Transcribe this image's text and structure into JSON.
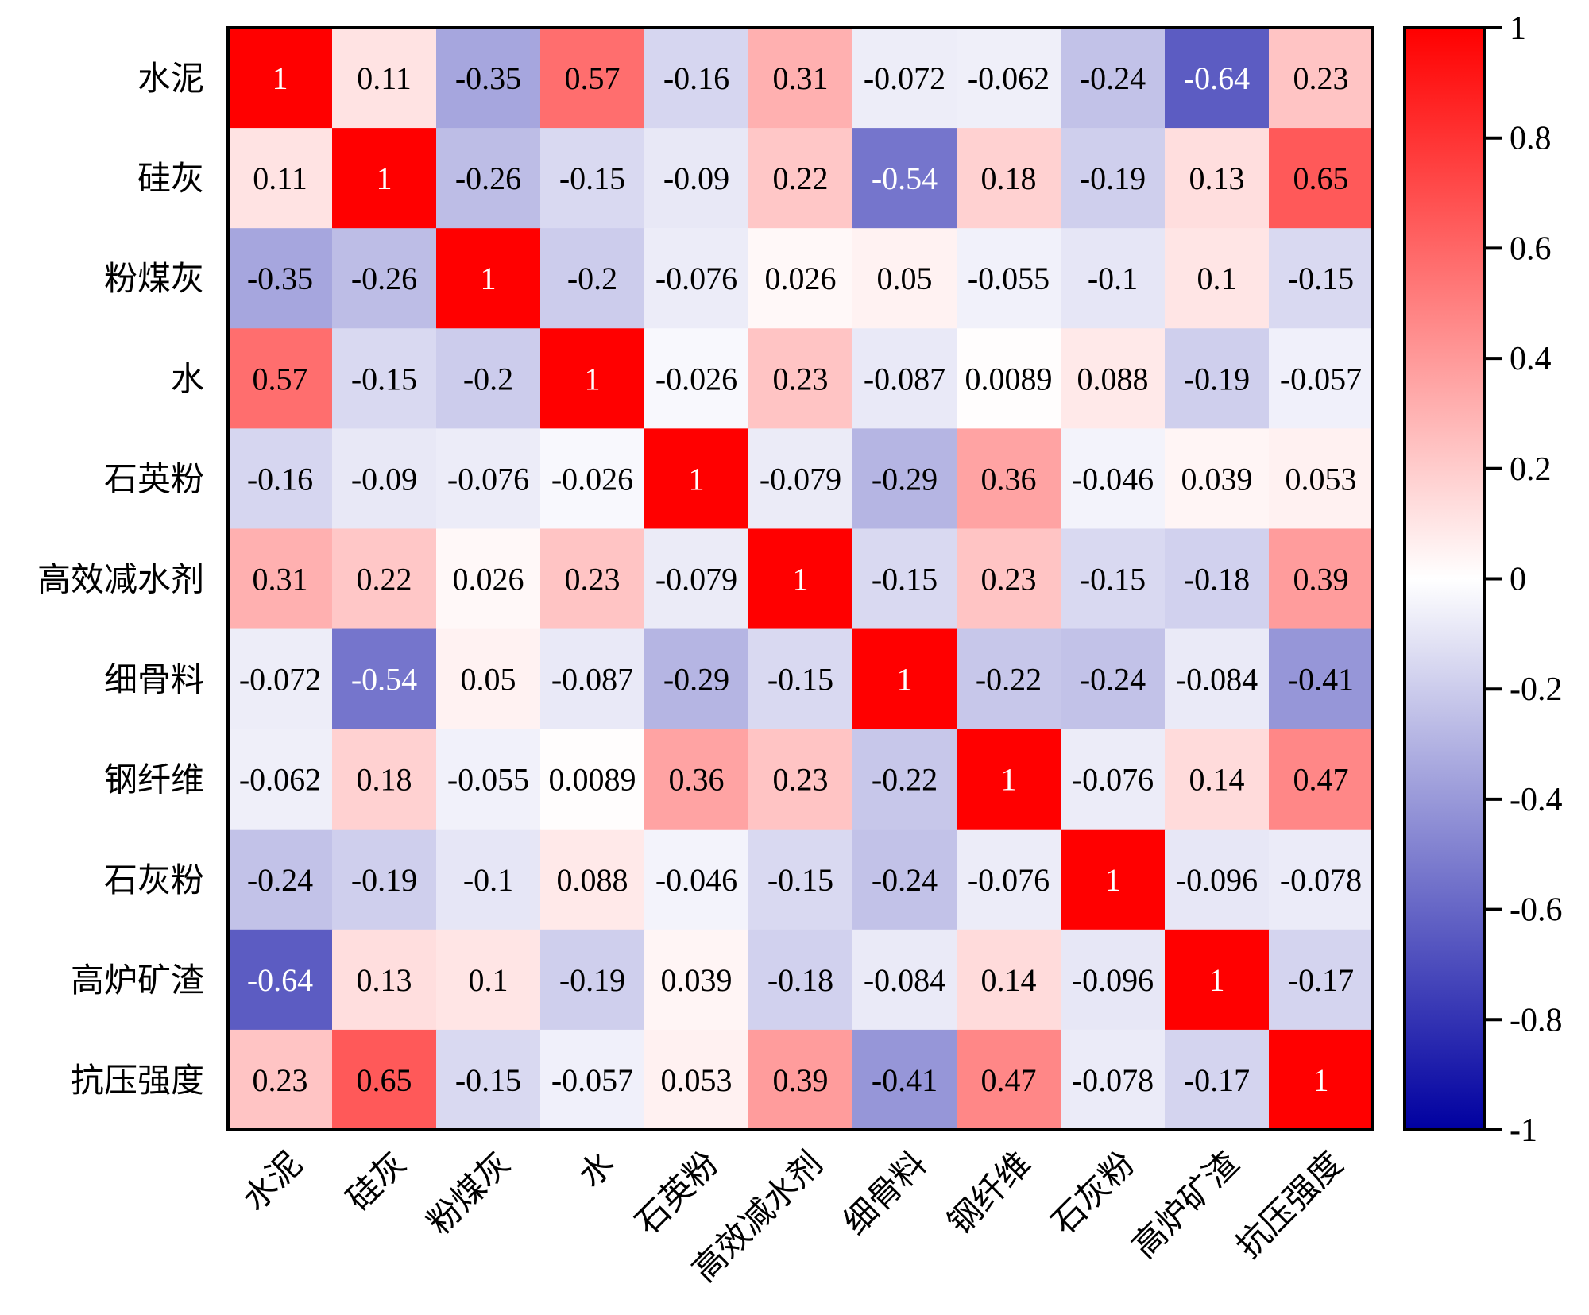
{
  "chart_data": {
    "type": "heatmap",
    "title": "",
    "xlabel": "",
    "ylabel": "",
    "categories": [
      "水泥",
      "硅灰",
      "粉煤灰",
      "水",
      "石英粉",
      "高效减水剂",
      "细骨料",
      "钢纤维",
      "石灰粉",
      "高炉矿渣",
      "抗压强度"
    ],
    "values": [
      [
        1,
        0.11,
        -0.35,
        0.57,
        -0.16,
        0.31,
        -0.072,
        -0.062,
        -0.24,
        -0.64,
        0.23
      ],
      [
        0.11,
        1,
        -0.26,
        -0.15,
        -0.09,
        0.22,
        -0.54,
        0.18,
        -0.19,
        0.13,
        0.65
      ],
      [
        -0.35,
        -0.26,
        1,
        -0.2,
        -0.076,
        0.026,
        0.05,
        -0.055,
        -0.1,
        0.1,
        -0.15
      ],
      [
        0.57,
        -0.15,
        -0.2,
        1,
        -0.026,
        0.23,
        -0.087,
        0.0089,
        0.088,
        -0.19,
        -0.057
      ],
      [
        -0.16,
        -0.09,
        -0.076,
        -0.026,
        1,
        -0.079,
        -0.29,
        0.36,
        -0.046,
        0.039,
        0.053
      ],
      [
        0.31,
        0.22,
        0.026,
        0.23,
        -0.079,
        1,
        -0.15,
        0.23,
        -0.15,
        -0.18,
        0.39
      ],
      [
        -0.072,
        -0.54,
        0.05,
        -0.087,
        -0.29,
        -0.15,
        1,
        -0.22,
        -0.24,
        -0.084,
        -0.41
      ],
      [
        -0.062,
        0.18,
        -0.055,
        0.0089,
        0.36,
        0.23,
        -0.22,
        1,
        -0.076,
        0.14,
        0.47
      ],
      [
        -0.24,
        -0.19,
        -0.1,
        0.088,
        -0.046,
        -0.15,
        -0.24,
        -0.076,
        1,
        -0.096,
        -0.078
      ],
      [
        -0.64,
        0.13,
        0.1,
        -0.19,
        0.039,
        -0.18,
        -0.084,
        0.14,
        -0.096,
        1,
        -0.17
      ],
      [
        0.23,
        0.65,
        -0.15,
        -0.057,
        0.053,
        0.39,
        -0.41,
        0.47,
        -0.078,
        -0.17,
        1
      ]
    ],
    "colorbar": {
      "min": -1,
      "max": 1,
      "ticks": [
        1,
        0.8,
        0.6,
        0.4,
        0.2,
        0,
        -0.2,
        -0.4,
        -0.6,
        -0.8,
        -1
      ],
      "colors": {
        "low": "#0000a0",
        "mid": "#ffffff",
        "high": "#ff0000"
      }
    },
    "legend": "right"
  }
}
